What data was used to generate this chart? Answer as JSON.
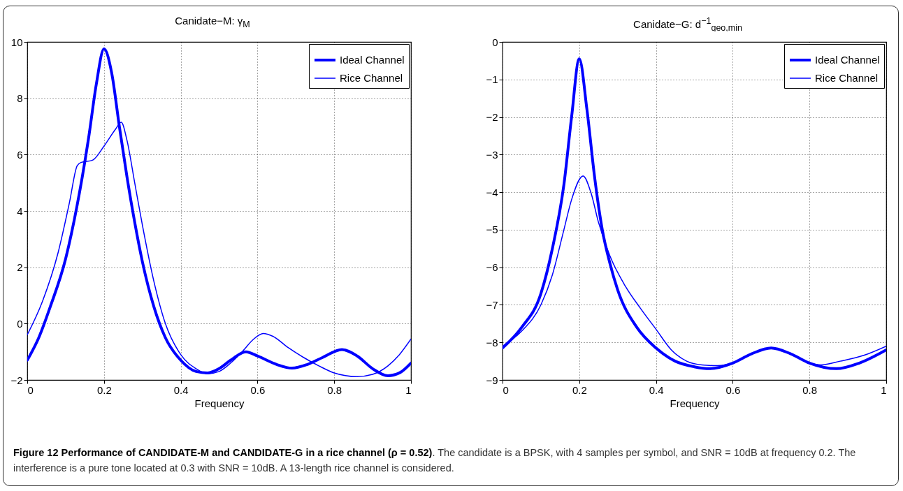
{
  "chart_data": [
    {
      "type": "line",
      "title": "Canidate−M: γ$_{M}$",
      "xlabel": "Frequency",
      "xlim": [
        0,
        1
      ],
      "xticks": [
        0,
        0.2,
        0.4,
        0.6,
        0.8,
        1
      ],
      "ylim": [
        -2,
        10
      ],
      "yticks": [
        -2,
        0,
        2,
        4,
        6,
        8,
        10
      ],
      "grid": true,
      "legend": "top right",
      "x": [
        0,
        0.03,
        0.06,
        0.1,
        0.13,
        0.16,
        0.18,
        0.2,
        0.22,
        0.24,
        0.26,
        0.28,
        0.3,
        0.33,
        0.36,
        0.4,
        0.44,
        0.47,
        0.5,
        0.53,
        0.57,
        0.6,
        0.65,
        0.69,
        0.73,
        0.77,
        0.82,
        0.86,
        0.9,
        0.94,
        0.97,
        1
      ],
      "series": [
        {
          "name": "Ideal Channel",
          "color": "#0000ff",
          "values": [
            -1.3,
            -0.5,
            0.6,
            2.3,
            4.2,
            6.6,
            8.5,
            9.75,
            8.9,
            7.0,
            5.2,
            3.6,
            2.2,
            0.6,
            -0.5,
            -1.3,
            -1.7,
            -1.75,
            -1.6,
            -1.3,
            -1.0,
            -1.15,
            -1.45,
            -1.58,
            -1.45,
            -1.2,
            -0.92,
            -1.15,
            -1.6,
            -1.85,
            -1.75,
            -1.4
          ]
        },
        {
          "name": "Rice Channel",
          "color": "#0000ff",
          "x": [
            0,
            0.04,
            0.08,
            0.11,
            0.13,
            0.14,
            0.17,
            0.2,
            0.23,
            0.245,
            0.26,
            0.28,
            0.3,
            0.33,
            0.36,
            0.4,
            0.44,
            0.47,
            0.5,
            0.53,
            0.56,
            0.59,
            0.615,
            0.64,
            0.68,
            0.72,
            0.76,
            0.8,
            0.86,
            0.9,
            0.94,
            0.97,
            1
          ],
          "values": [
            -0.4,
            0.8,
            2.5,
            4.3,
            5.6,
            5.72,
            5.8,
            6.3,
            6.9,
            7.15,
            6.5,
            5.0,
            3.5,
            1.5,
            0.0,
            -1.1,
            -1.6,
            -1.78,
            -1.7,
            -1.4,
            -1.0,
            -0.55,
            -0.35,
            -0.45,
            -0.85,
            -1.2,
            -1.5,
            -1.75,
            -1.88,
            -1.8,
            -1.5,
            -1.1,
            -0.55
          ]
        }
      ],
      "annotations": [
        "Figure 12 Performance of CANDIDATE-M and CANDIDATE-G in a rice channel (ρ = 0.52)",
        ". The candidate is a BPSK, with 4 samples per symbol, and SNR = 10dB at frequency 0.2. The interference is a pure tone located at 0.3 with SNR = 10dB. A 13-length rice channel is considered."
      ]
    },
    {
      "type": "line",
      "title": "Canidate−G: d$^{−1}$$_{geo,min}$",
      "xlabel": "Frequency",
      "xlim": [
        0,
        1
      ],
      "xticks": [
        0,
        0.2,
        0.4,
        0.6,
        0.8,
        1
      ],
      "ylim": [
        -9,
        0
      ],
      "yticks": [
        -9,
        -8,
        -7,
        -6,
        -5,
        -4,
        -3,
        -2,
        -1,
        0
      ],
      "grid": true,
      "legend": "top right",
      "x": [
        0,
        0.05,
        0.1,
        0.13,
        0.16,
        0.18,
        0.2,
        0.22,
        0.24,
        0.26,
        0.28,
        0.3,
        0.35,
        0.4,
        0.45,
        0.5,
        0.54,
        0.6,
        0.65,
        0.7,
        0.75,
        0.8,
        0.87,
        0.93,
        1
      ],
      "series": [
        {
          "name": "Ideal Channel",
          "color": "#0000ff",
          "values": [
            -8.15,
            -7.6,
            -6.7,
            -5.5,
            -3.8,
            -2.0,
            -0.45,
            -1.8,
            -3.6,
            -5.0,
            -5.9,
            -6.6,
            -7.6,
            -8.15,
            -8.5,
            -8.65,
            -8.7,
            -8.55,
            -8.3,
            -8.15,
            -8.3,
            -8.55,
            -8.7,
            -8.55,
            -8.2
          ]
        },
        {
          "name": "Rice Channel",
          "color": "#0000ff",
          "x": [
            0,
            0.05,
            0.1,
            0.13,
            0.16,
            0.18,
            0.21,
            0.23,
            0.25,
            0.28,
            0.32,
            0.36,
            0.4,
            0.44,
            0.48,
            0.52,
            0.56,
            0.6,
            0.65,
            0.7,
            0.75,
            0.8,
            0.83,
            0.88,
            0.94,
            1
          ],
          "values": [
            -8.1,
            -7.7,
            -7.0,
            -6.2,
            -5.0,
            -4.2,
            -3.57,
            -4.0,
            -4.8,
            -5.7,
            -6.5,
            -7.1,
            -7.65,
            -8.2,
            -8.5,
            -8.6,
            -8.62,
            -8.55,
            -8.3,
            -8.15,
            -8.3,
            -8.55,
            -8.6,
            -8.5,
            -8.35,
            -8.1
          ]
        }
      ]
    }
  ]
}
